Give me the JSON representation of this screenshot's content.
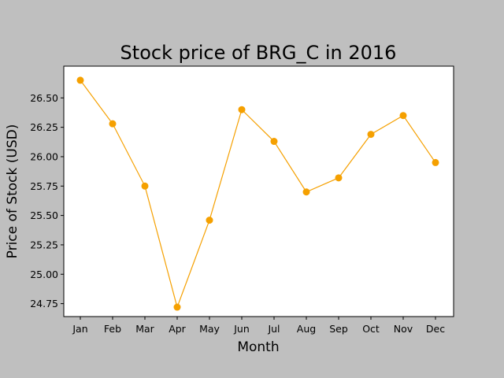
{
  "chart_data": {
    "type": "line",
    "title": "Stock price of BRG_C in 2016",
    "xlabel": "Month",
    "ylabel": "Price of Stock (USD)",
    "categories": [
      "Jan",
      "Feb",
      "Mar",
      "Apr",
      "May",
      "Jun",
      "Jul",
      "Aug",
      "Sep",
      "Oct",
      "Nov",
      "Dec"
    ],
    "series": [
      {
        "values": [
          26.65,
          26.28,
          25.75,
          24.72,
          25.46,
          26.4,
          26.13,
          25.7,
          25.82,
          26.19,
          26.35,
          25.95
        ],
        "color": "#f5a000"
      }
    ],
    "ylim": [
      24.64,
      26.77
    ],
    "yticks": [
      24.75,
      25.0,
      25.25,
      25.5,
      25.75,
      26.0,
      26.25,
      26.5
    ],
    "ytick_labels": [
      "24.75",
      "25.00",
      "25.25",
      "25.50",
      "25.75",
      "26.00",
      "26.25",
      "26.50"
    ],
    "grid": false,
    "colors": {
      "figure_background": "#bfbfbf",
      "plot_background": "#ffffff",
      "line": "#f5a000"
    }
  }
}
